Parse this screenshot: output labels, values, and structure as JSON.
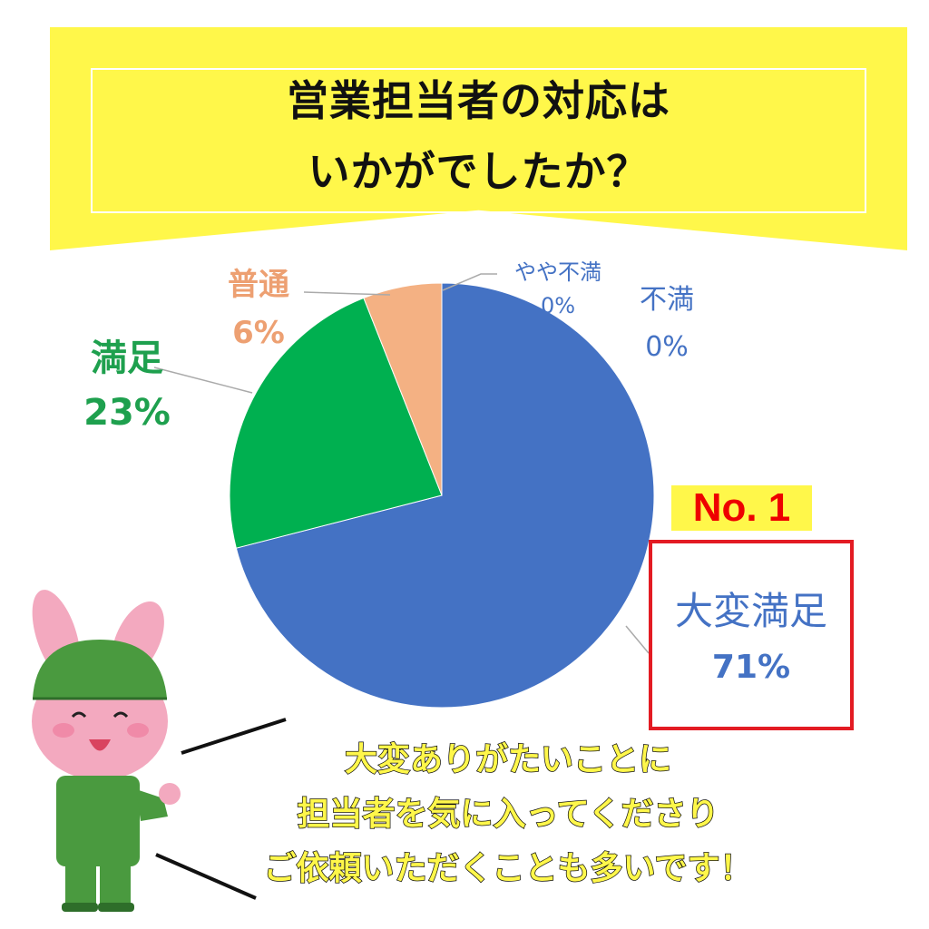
{
  "title": {
    "line1": "営業担当者の対応は",
    "line2": "いかがでしたか？"
  },
  "chart_data": {
    "type": "pie",
    "categories": [
      "大変満足",
      "満足",
      "普通",
      "やや不満",
      "不満"
    ],
    "values": [
      71,
      23,
      6,
      0,
      0
    ],
    "labels": [
      "71%",
      "23%",
      "6%",
      "0%",
      "0%"
    ],
    "colors": [
      "#4472C4",
      "#00B050",
      "#F4B183",
      "#A5A5A5",
      "#FFC000"
    ],
    "label_colors": [
      "#4472C4",
      "#1EA04E",
      "#EDA072",
      "#4472C4",
      "#4472C4"
    ],
    "start": "12 o'clock",
    "direction": "clockwise"
  },
  "highlight": {
    "rank": "No. 1"
  },
  "message": {
    "line1": "大変ありがたいことに",
    "line2": "担当者を気に入ってくださり",
    "line3": "ご依頼いただくことも多いです！"
  },
  "character": "rabbit-worker-illustration"
}
